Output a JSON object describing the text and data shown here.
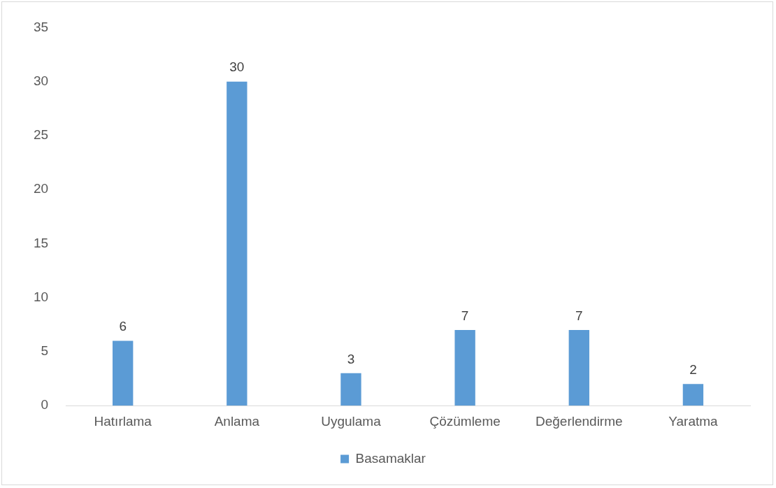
{
  "chart_data": {
    "type": "bar",
    "categories": [
      "Hatırlama",
      "Anlama",
      "Uygulama",
      "Çözümleme",
      "Değerlendirme",
      "Yaratma"
    ],
    "series": [
      {
        "name": "Basamaklar",
        "color": "#5b9bd5",
        "values": [
          6,
          30,
          3,
          7,
          7,
          2
        ]
      }
    ],
    "ylim": [
      0,
      35
    ],
    "yticks": [
      0,
      5,
      10,
      15,
      20,
      25,
      30,
      35
    ],
    "grid": false,
    "legend": "bottom",
    "data_labels": true
  }
}
